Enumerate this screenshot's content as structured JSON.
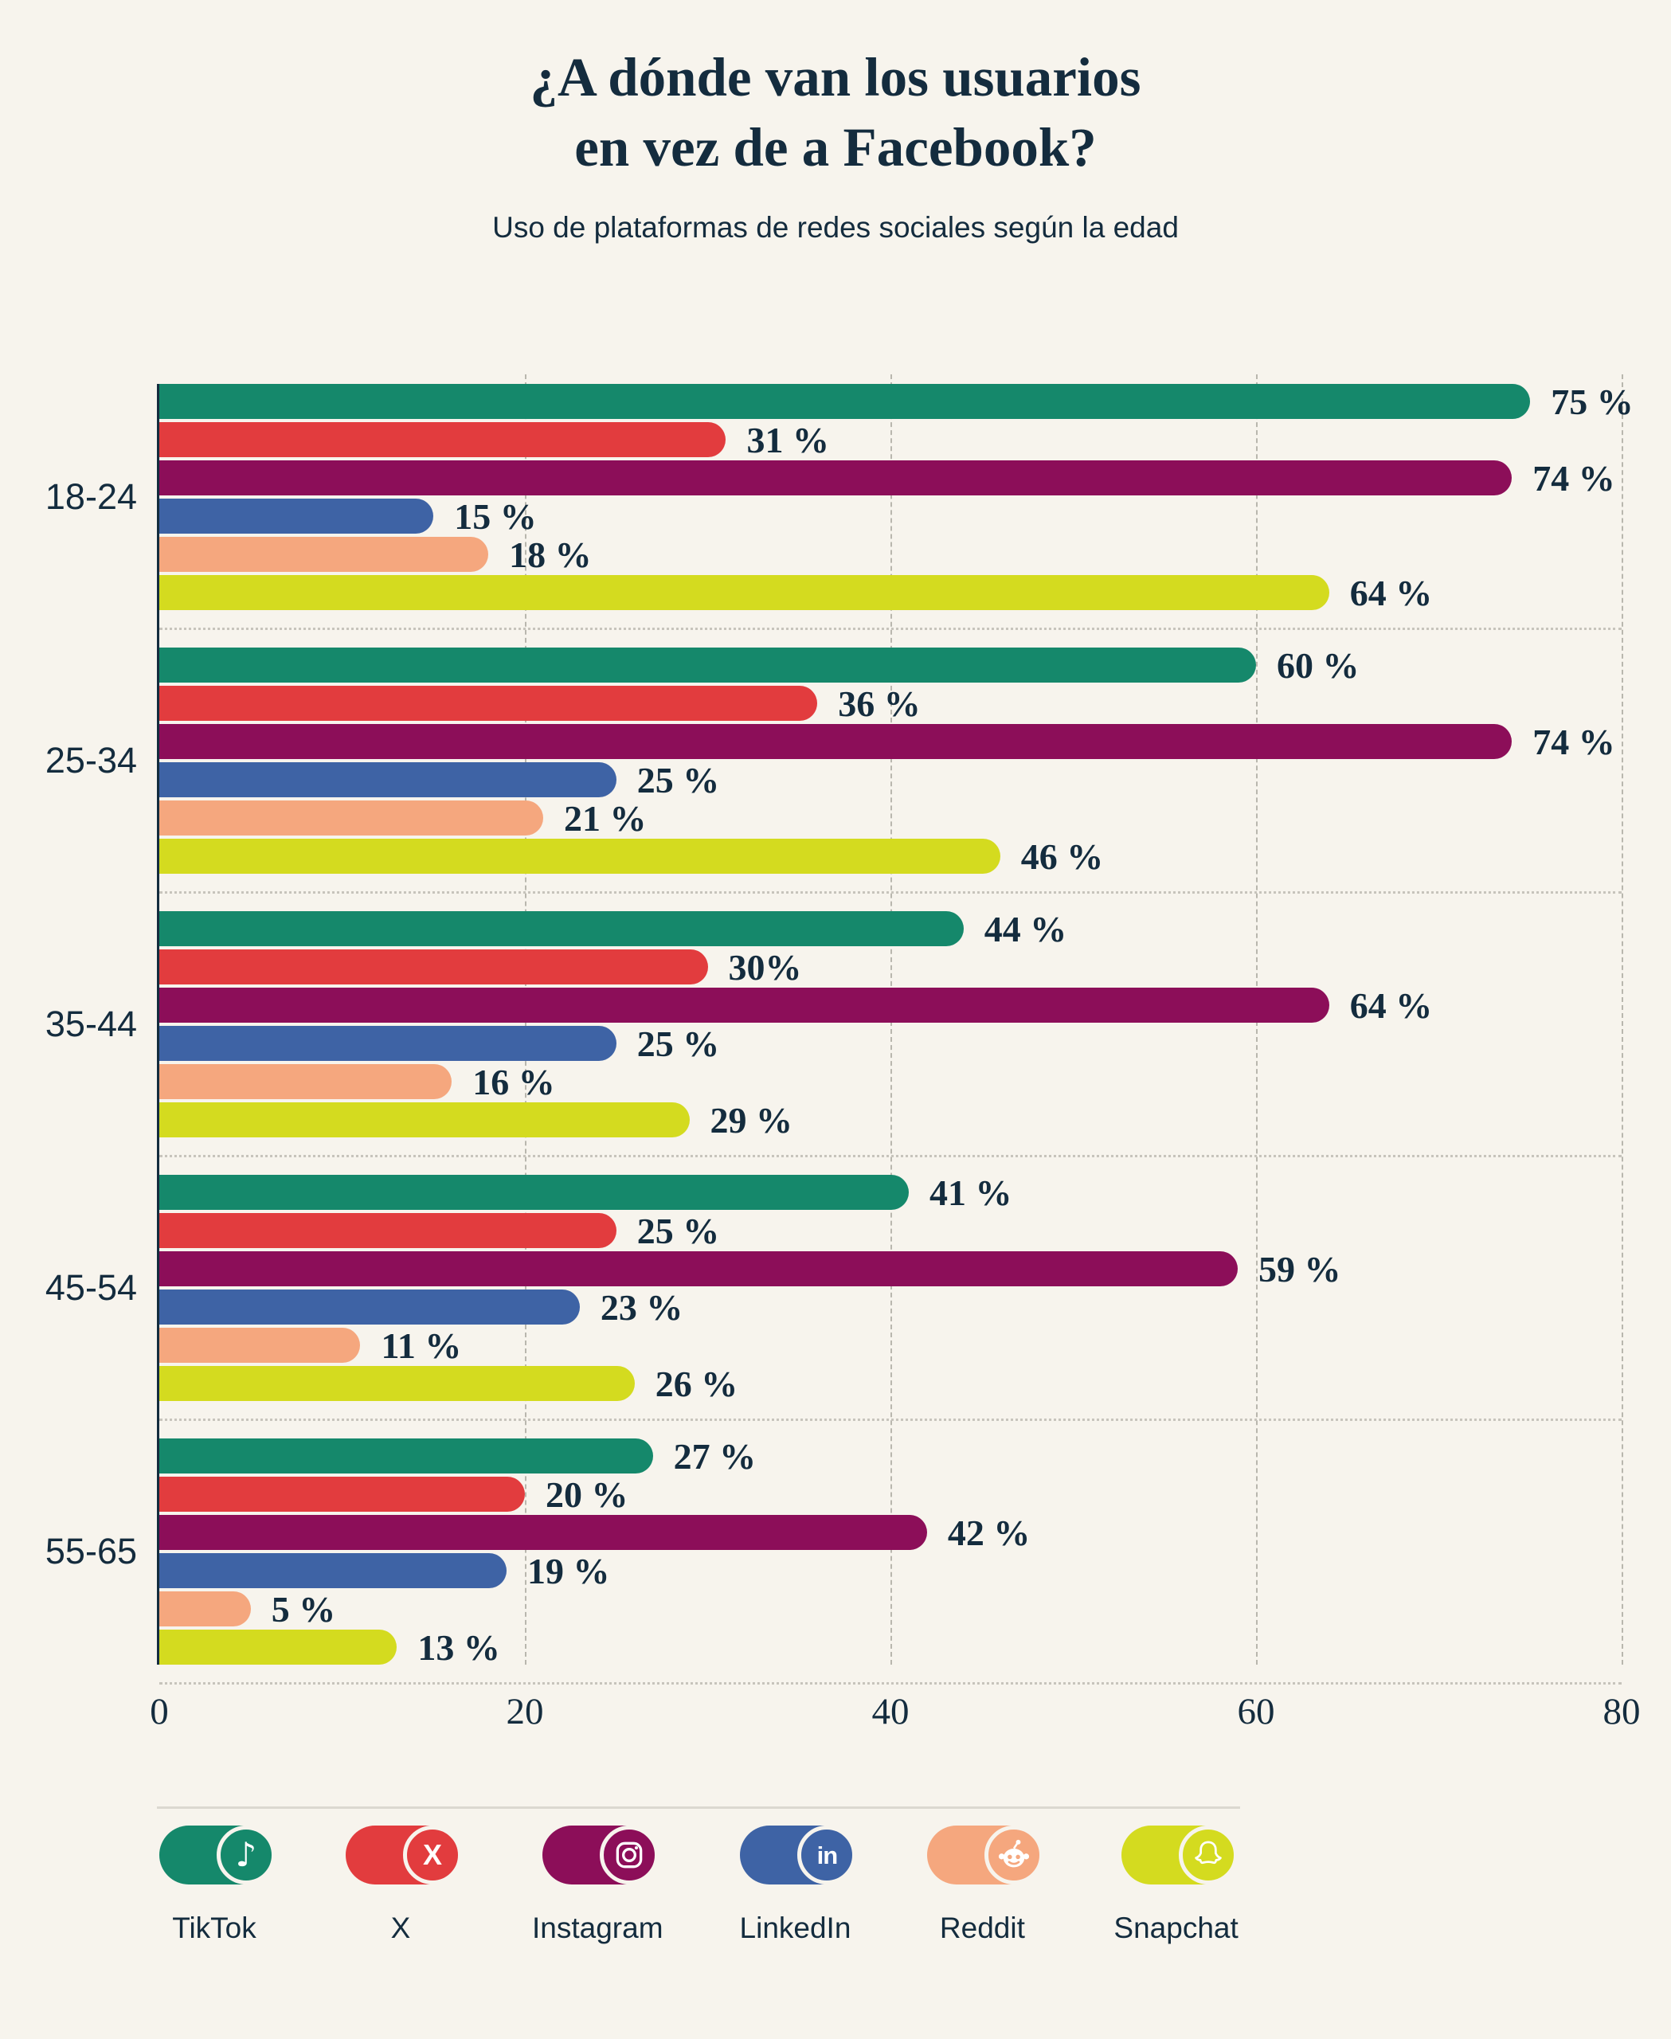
{
  "title": {
    "line1": "¿A dónde van los usuarios",
    "line2": "en vez de a Facebook?"
  },
  "subtitle": "Uso de plataformas de redes sociales según la edad",
  "colors": {
    "background": "#f7f4ed",
    "text": "#142c3e",
    "grid": "#b9b7ae",
    "separator": "#c7c4bc",
    "divider": "#dbd8d0"
  },
  "chart_data": {
    "type": "bar",
    "orientation": "horizontal",
    "title": "¿A dónde van los usuarios en vez de a Facebook?",
    "subtitle": "Uso de plataformas de redes sociales según la edad",
    "categories": [
      "18-24",
      "25-34",
      "35-44",
      "45-54",
      "55-65"
    ],
    "series": [
      {
        "name": "TikTok",
        "color": "#15886b",
        "values": [
          75,
          60,
          44,
          41,
          27
        ],
        "labels": [
          "75 %",
          "60 %",
          "44 %",
          "41 %",
          "27 %"
        ]
      },
      {
        "name": "X",
        "color": "#e23c3e",
        "values": [
          31,
          36,
          30,
          25,
          20
        ],
        "labels": [
          "31 %",
          "36 %",
          "30%",
          "25 %",
          "20 %"
        ]
      },
      {
        "name": "Instagram",
        "color": "#8c0e59",
        "values": [
          74,
          74,
          64,
          59,
          42
        ],
        "labels": [
          "74 %",
          "74 %",
          "64 %",
          "59 %",
          "42 %"
        ]
      },
      {
        "name": "LinkedIn",
        "color": "#3e63a5",
        "values": [
          15,
          25,
          25,
          23,
          19
        ],
        "labels": [
          "15 %",
          "25 %",
          "25 %",
          "23 %",
          "19 %"
        ]
      },
      {
        "name": "Reddit",
        "color": "#f5a77e",
        "values": [
          18,
          21,
          16,
          11,
          5
        ],
        "labels": [
          "18 %",
          "21 %",
          "16 %",
          "11 %",
          "5 %"
        ]
      },
      {
        "name": "Snapchat",
        "color": "#d4db1f",
        "values": [
          64,
          46,
          29,
          26,
          13
        ],
        "labels": [
          "64 %",
          "46 %",
          "29 %",
          "26 %",
          "13 %"
        ]
      }
    ],
    "xlim": [
      0,
      80
    ],
    "xticks": [
      0,
      20,
      40,
      60,
      80
    ],
    "grid": "vertical-dashed",
    "legend_position": "bottom"
  },
  "legend": {
    "items": [
      {
        "label": "TikTok",
        "icon": "tiktok-icon",
        "color": "#15886b"
      },
      {
        "label": "X",
        "icon": "x-icon",
        "color": "#e23c3e"
      },
      {
        "label": "Instagram",
        "icon": "instagram-icon",
        "color": "#8c0e59"
      },
      {
        "label": "LinkedIn",
        "icon": "linkedin-icon",
        "color": "#3e63a5"
      },
      {
        "label": "Reddit",
        "icon": "reddit-icon",
        "color": "#f5a77e"
      },
      {
        "label": "Snapchat",
        "icon": "snapchat-icon",
        "color": "#d4db1f"
      }
    ]
  }
}
